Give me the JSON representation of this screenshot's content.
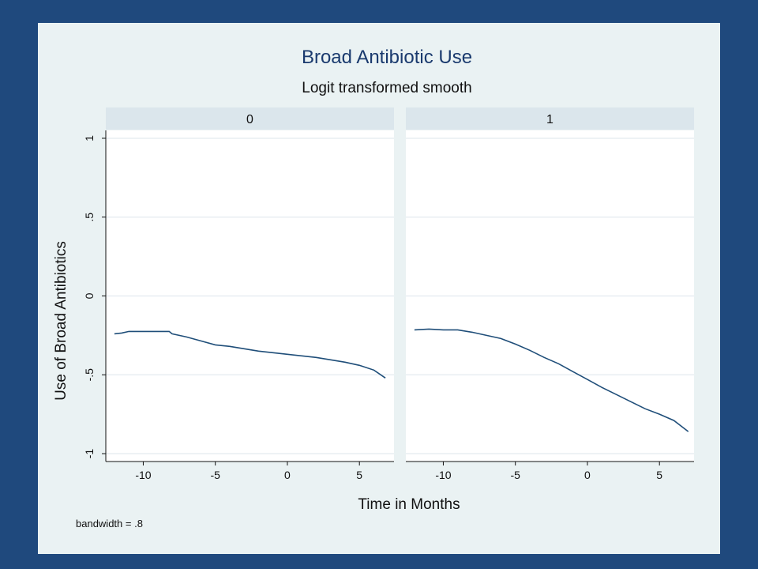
{
  "chart_data": {
    "type": "line",
    "title": "Broad Antibiotic Use",
    "subtitle": "Logit transformed smooth",
    "xlabel": "Time in Months",
    "ylabel": "Use of Broad Antibiotics",
    "note": "bandwidth = .8",
    "xlim": [
      -12.6,
      7.4
    ],
    "ylim": [
      -1.05,
      1.05
    ],
    "xticks": [
      -10,
      -5,
      0,
      5
    ],
    "xtick_labels": [
      "-10",
      "-5",
      "0",
      "5"
    ],
    "yticks": [
      1,
      0.5,
      0,
      -0.5,
      -1
    ],
    "ytick_labels": [
      "1",
      ".5",
      "0",
      "-.5",
      "-1"
    ],
    "grid": true,
    "colors": {
      "line": "#1f4e79",
      "strip": "#dbe6ec",
      "panel": "#ffffff",
      "gridline": "#e8eef2",
      "background": "#eaf2f3",
      "slide": "#1f497d"
    },
    "panels": [
      {
        "label": "0",
        "x": [
          -12,
          -11.5,
          -11,
          -10,
          -9,
          -8.2,
          -8,
          -7,
          -6,
          -5,
          -4,
          -3,
          -2,
          -1,
          0,
          1,
          2,
          3,
          4,
          5,
          6,
          6.8
        ],
        "y": [
          -0.24,
          -0.235,
          -0.225,
          -0.225,
          -0.225,
          -0.225,
          -0.24,
          -0.26,
          -0.285,
          -0.31,
          -0.32,
          -0.335,
          -0.35,
          -0.36,
          -0.37,
          -0.38,
          -0.39,
          -0.405,
          -0.42,
          -0.44,
          -0.47,
          -0.52
        ]
      },
      {
        "label": "1",
        "x": [
          -12,
          -11,
          -10,
          -9,
          -8,
          -7,
          -6,
          -5,
          -4,
          -3,
          -2,
          -1,
          0,
          1,
          2,
          3,
          4,
          5,
          6,
          7
        ],
        "y": [
          -0.215,
          -0.21,
          -0.215,
          -0.215,
          -0.23,
          -0.25,
          -0.27,
          -0.305,
          -0.345,
          -0.39,
          -0.43,
          -0.48,
          -0.53,
          -0.58,
          -0.625,
          -0.67,
          -0.715,
          -0.75,
          -0.79,
          -0.86
        ]
      }
    ]
  }
}
